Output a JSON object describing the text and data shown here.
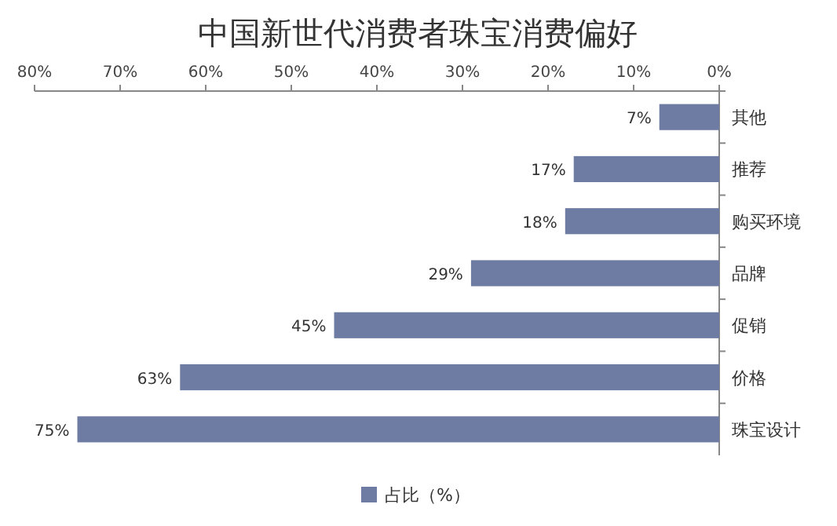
{
  "chart_data": {
    "type": "bar",
    "orientation": "horizontal",
    "title": "中国新世代消费者珠宝消费偏好",
    "categories": [
      "其他",
      "推荐",
      "购买环境",
      "品牌",
      "促销",
      "价格",
      "珠宝设计"
    ],
    "series": [
      {
        "name": "占比（%）",
        "color": "#6e7ca3",
        "values": [
          7,
          17,
          18,
          29,
          45,
          63,
          75
        ]
      }
    ],
    "value_labels": [
      "7%",
      "17%",
      "18%",
      "29%",
      "45%",
      "63%",
      "75%"
    ],
    "xlim": [
      80,
      0
    ],
    "xticks": [
      {
        "value": 0,
        "label": "0%"
      },
      {
        "value": 10,
        "label": "10%"
      },
      {
        "value": 20,
        "label": "20%"
      },
      {
        "value": 30,
        "label": "30%"
      },
      {
        "value": 40,
        "label": "40%"
      },
      {
        "value": 50,
        "label": "50%"
      },
      {
        "value": 60,
        "label": "60%"
      },
      {
        "value": 70,
        "label": "70%"
      },
      {
        "value": 80,
        "label": "80%"
      }
    ],
    "legend": "bottom",
    "grid": false
  }
}
